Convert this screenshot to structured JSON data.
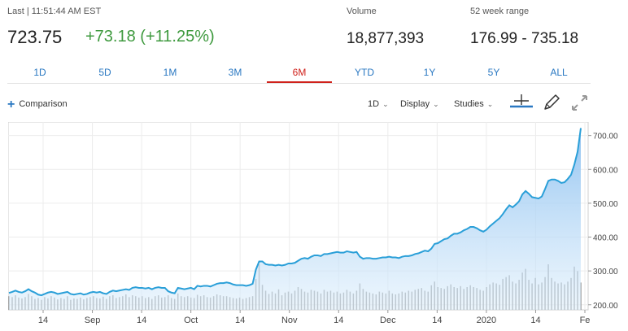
{
  "quote": {
    "last_label": "Last | 11:51:44 AM EST",
    "price": "723.75",
    "change": "+73.18 (+11.25%)",
    "volume_label": "Volume",
    "volume_value": "18,877,393",
    "range_label": "52 week range",
    "range_value": "176.99 - 735.18"
  },
  "tabs": [
    {
      "label": "1D"
    },
    {
      "label": "5D"
    },
    {
      "label": "1M"
    },
    {
      "label": "3M"
    },
    {
      "label": "6M",
      "active": true
    },
    {
      "label": "YTD"
    },
    {
      "label": "1Y"
    },
    {
      "label": "5Y"
    },
    {
      "label": "ALL"
    }
  ],
  "toolbar": {
    "comparison_label": "Comparison",
    "interval_label": "1D",
    "display_label": "Display",
    "studies_label": "Studies",
    "icons": [
      "crosshair-icon",
      "pencil-icon",
      "expand-icon"
    ]
  },
  "colors": {
    "accent": "#2a78c2",
    "active_tab": "#d0211b",
    "positive": "#3f9a3f",
    "price_line": "#2a9fd8",
    "volume_bar": "#9a9a9a"
  },
  "chart_data": {
    "type": "area",
    "x_tick_labels": [
      "14",
      "Sep",
      "14",
      "Oct",
      "14",
      "Nov",
      "14",
      "Dec",
      "14",
      "2020",
      "14",
      "Fe"
    ],
    "y_ticks": [
      200,
      300,
      400,
      500,
      600,
      700
    ],
    "y_tick_labels": [
      "200.00",
      "300.00",
      "400.00",
      "500.00",
      "600.00",
      "700.00"
    ],
    "ylim": [
      185,
      740
    ],
    "grid": true,
    "price": [
      235,
      238,
      242,
      238,
      236,
      240,
      246,
      240,
      236,
      230,
      228,
      232,
      236,
      238,
      236,
      232,
      234,
      236,
      238,
      232,
      230,
      232,
      234,
      230,
      232,
      236,
      238,
      236,
      238,
      234,
      232,
      238,
      242,
      240,
      242,
      244,
      246,
      244,
      250,
      252,
      250,
      250,
      248,
      250,
      246,
      250,
      252,
      250,
      250,
      240,
      236,
      234,
      250,
      248,
      246,
      248,
      250,
      246,
      256,
      254,
      256,
      256,
      254,
      258,
      262,
      264,
      264,
      266,
      264,
      260,
      258,
      258,
      258,
      256,
      258,
      262,
      304,
      328,
      328,
      320,
      318,
      318,
      316,
      318,
      316,
      318,
      322,
      322,
      324,
      330,
      336,
      338,
      336,
      342,
      346,
      346,
      344,
      350,
      350,
      352,
      354,
      356,
      354,
      354,
      358,
      356,
      354,
      356,
      342,
      336,
      338,
      338,
      336,
      336,
      338,
      340,
      340,
      342,
      340,
      340,
      338,
      342,
      344,
      344,
      346,
      350,
      352,
      356,
      360,
      358,
      366,
      380,
      382,
      388,
      394,
      396,
      404,
      410,
      410,
      414,
      420,
      424,
      430,
      430,
      426,
      420,
      416,
      422,
      432,
      440,
      448,
      456,
      468,
      482,
      494,
      488,
      496,
      506,
      526,
      536,
      528,
      518,
      516,
      514,
      520,
      542,
      566,
      570,
      570,
      566,
      560,
      562,
      572,
      584,
      614,
      652,
      722
    ],
    "volume": [
      0.3,
      0.28,
      0.32,
      0.27,
      0.25,
      0.28,
      0.35,
      0.3,
      0.24,
      0.26,
      0.22,
      0.28,
      0.25,
      0.3,
      0.27,
      0.23,
      0.26,
      0.24,
      0.3,
      0.22,
      0.25,
      0.24,
      0.27,
      0.23,
      0.26,
      0.28,
      0.3,
      0.26,
      0.25,
      0.29,
      0.24,
      0.3,
      0.32,
      0.26,
      0.28,
      0.3,
      0.34,
      0.28,
      0.32,
      0.3,
      0.27,
      0.3,
      0.26,
      0.28,
      0.24,
      0.3,
      0.32,
      0.27,
      0.28,
      0.32,
      0.26,
      0.24,
      0.36,
      0.3,
      0.28,
      0.3,
      0.27,
      0.26,
      0.33,
      0.3,
      0.32,
      0.28,
      0.27,
      0.3,
      0.34,
      0.32,
      0.3,
      0.3,
      0.28,
      0.26,
      0.25,
      0.27,
      0.24,
      0.26,
      0.28,
      0.3,
      0.68,
      1.0,
      0.55,
      0.42,
      0.35,
      0.4,
      0.36,
      0.45,
      0.32,
      0.38,
      0.4,
      0.36,
      0.42,
      0.5,
      0.46,
      0.4,
      0.38,
      0.44,
      0.42,
      0.4,
      0.36,
      0.44,
      0.4,
      0.42,
      0.38,
      0.4,
      0.36,
      0.38,
      0.44,
      0.4,
      0.36,
      0.42,
      0.58,
      0.46,
      0.4,
      0.38,
      0.36,
      0.34,
      0.4,
      0.38,
      0.36,
      0.42,
      0.36,
      0.34,
      0.36,
      0.4,
      0.38,
      0.42,
      0.4,
      0.44,
      0.46,
      0.48,
      0.42,
      0.4,
      0.54,
      0.62,
      0.5,
      0.48,
      0.46,
      0.52,
      0.56,
      0.5,
      0.48,
      0.52,
      0.46,
      0.5,
      0.54,
      0.5,
      0.48,
      0.44,
      0.42,
      0.5,
      0.56,
      0.6,
      0.58,
      0.55,
      0.68,
      0.72,
      0.76,
      0.62,
      0.58,
      0.66,
      0.82,
      0.9,
      0.66,
      0.58,
      0.7,
      0.56,
      0.6,
      0.72,
      1.0,
      0.7,
      0.62,
      0.58,
      0.6,
      0.56,
      0.62,
      0.7,
      0.95,
      0.85,
      0.6
    ]
  }
}
